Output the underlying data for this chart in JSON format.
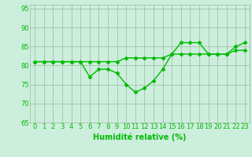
{
  "line1_x": [
    0,
    1,
    2,
    3,
    4,
    5,
    6,
    7,
    8,
    9,
    10,
    11,
    12,
    13,
    14,
    15,
    16,
    17,
    18,
    19,
    20,
    21,
    22,
    23
  ],
  "line1_y": [
    81,
    81,
    81,
    81,
    81,
    81,
    81,
    81,
    81,
    81,
    82,
    82,
    82,
    82,
    82,
    83,
    83,
    83,
    83,
    83,
    83,
    83,
    84,
    84
  ],
  "line2_x": [
    0,
    1,
    2,
    3,
    4,
    5,
    6,
    7,
    8,
    9,
    10,
    11,
    12,
    13,
    14,
    15,
    16,
    17,
    18,
    19,
    20,
    21,
    22,
    23
  ],
  "line2_y": [
    81,
    81,
    81,
    81,
    81,
    81,
    77,
    79,
    79,
    78,
    75,
    73,
    74,
    76,
    79,
    83,
    86,
    86,
    86,
    83,
    83,
    83,
    85,
    86
  ],
  "line_color": "#00bb00",
  "bg_color": "#cceedd",
  "grid_color": "#99bb99",
  "xlabel": "Humidité relative (%)",
  "ylim": [
    65,
    96
  ],
  "xlim": [
    -0.5,
    23.5
  ],
  "yticks": [
    65,
    70,
    75,
    80,
    85,
    90,
    95
  ],
  "xticks": [
    0,
    1,
    2,
    3,
    4,
    5,
    6,
    7,
    8,
    9,
    10,
    11,
    12,
    13,
    14,
    15,
    16,
    17,
    18,
    19,
    20,
    21,
    22,
    23
  ],
  "xlabel_fontsize": 7,
  "tick_fontsize": 6,
  "line_width": 1.0,
  "marker": "D",
  "marker_size": 2.5
}
